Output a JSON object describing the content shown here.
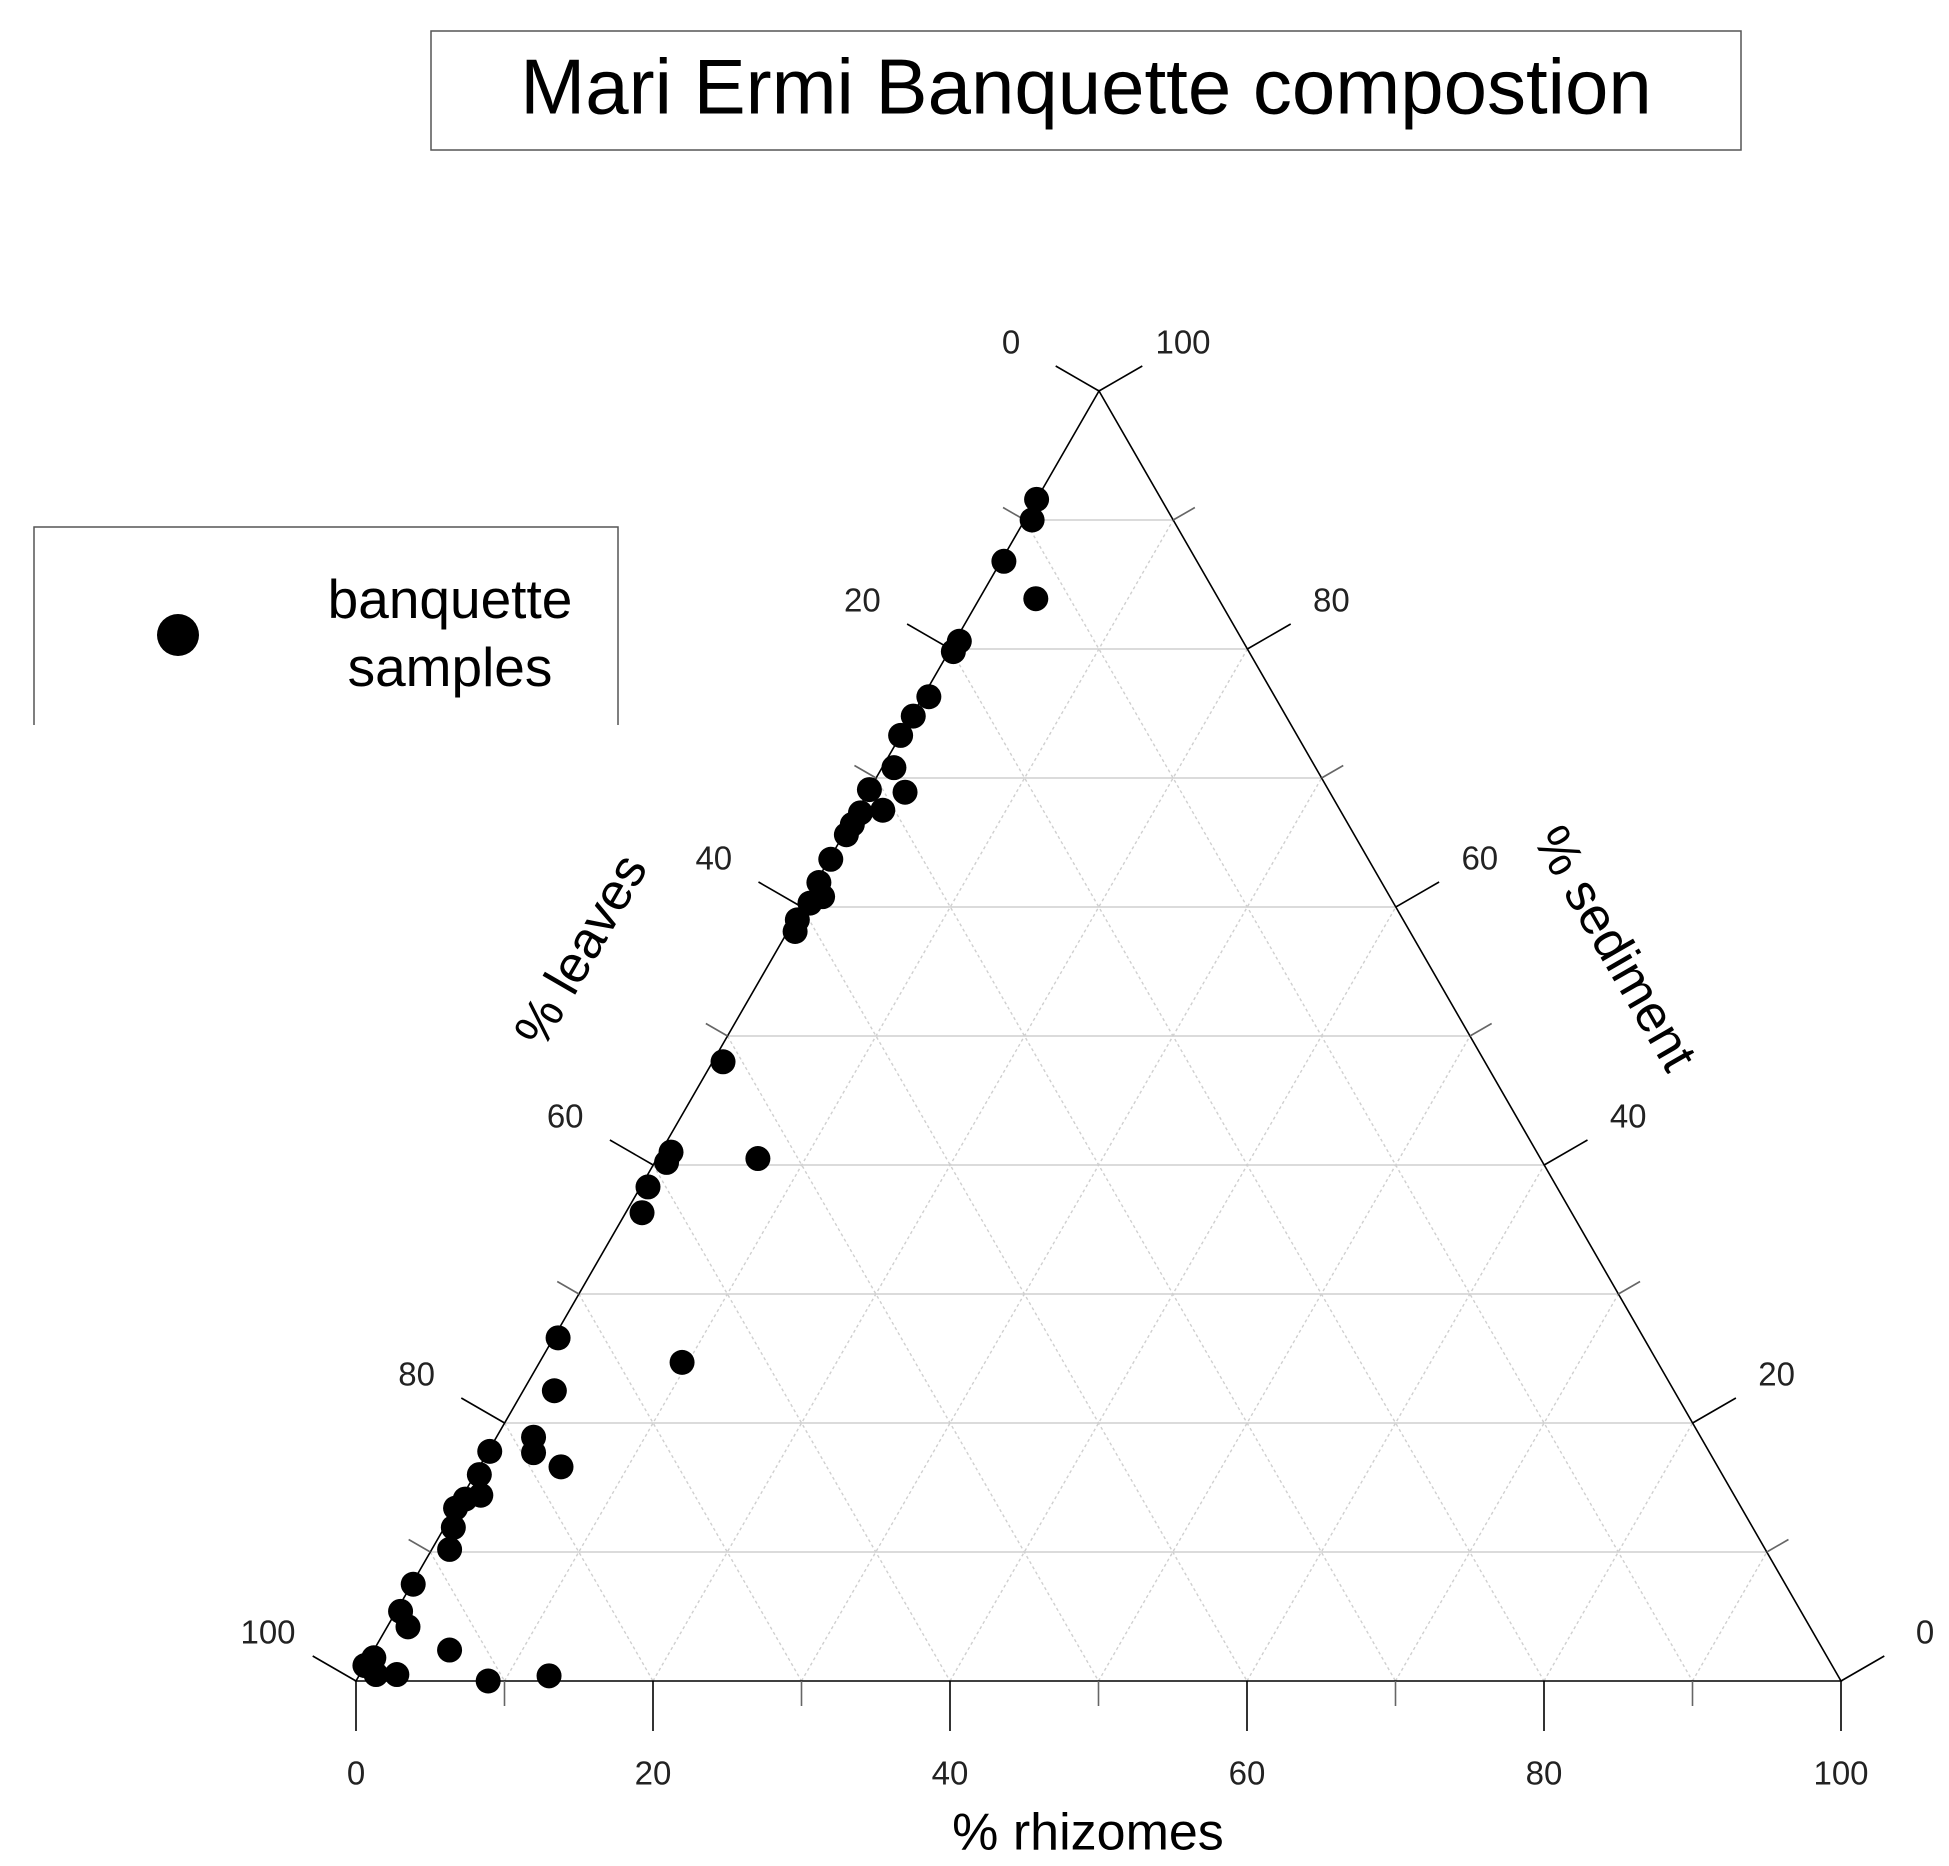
{
  "chart_data": {
    "type": "ternary",
    "title": "Mari Ermi Banquette compostion",
    "grid": true,
    "legend": "upper left",
    "axes": {
      "rhizomes": {
        "label": "% rhizomes",
        "lim": [
          0,
          100
        ],
        "ticks": [
          0,
          20,
          40,
          60,
          80,
          100
        ],
        "minor_ticks": [
          10,
          30,
          50,
          70,
          90
        ]
      },
      "leaves": {
        "label": "% leaves",
        "lim": [
          0,
          100
        ],
        "ticks": [
          0,
          20,
          40,
          60,
          80,
          100
        ],
        "minor_ticks": [
          10,
          30,
          50,
          70,
          90
        ]
      },
      "sediment": {
        "label": "% sediment",
        "lim": [
          0,
          100
        ],
        "ticks": [
          0,
          20,
          40,
          60,
          80,
          100
        ],
        "minor_ticks": [
          10,
          30,
          50,
          70,
          90
        ]
      }
    },
    "series": [
      {
        "name": "banquette samples",
        "color": "#000000",
        "rhizomes": [
          0,
          0.5,
          0.2,
          3.8,
          0.3,
          0.3,
          0.4,
          0.1,
          0,
          0.8,
          2.5,
          0,
          1.7,
          0.3,
          0.2,
          0.2,
          0.1,
          0.2,
          1.0,
          0.4,
          0.2,
          0.5,
          0.7,
          0.7,
          0.8,
          6.8,
          0.5,
          1.1,
          0.3,
          9.6,
          2.1,
          2.5,
          3.1,
          0.1,
          5.5,
          0.3,
          0.3,
          1.2,
          0,
          0.6,
          1.2,
          0.1,
          0.3,
          1.4,
          5.1,
          0.3,
          0,
          1.1,
          2.5,
          8.9,
          12.8
        ],
        "leaves": [
          8.4,
          9.5,
          13.0,
          12.3,
          19.1,
          19.9,
          23.3,
          25.1,
          26.7,
          28.4,
          28.6,
          30.9,
          30.8,
          32.4,
          33.4,
          34.2,
          36.2,
          37.9,
          38.2,
          39.3,
          40.8,
          41.4,
          51.3,
          58.3,
          59.0,
          52.7,
          61.2,
          62.6,
          73.1,
          65.7,
          75.4,
          78.6,
          79.2,
          82.1,
          77.9,
          83.7,
          85.6,
          84.4,
          86.6,
          87.5,
          88.6,
          92.4,
          94.3,
          94.4,
          92.5,
          97.9,
          98.8,
          98.4,
          97.0,
          91.1,
          86.8
        ],
        "sediment": [
          91.6,
          90.0,
          86.8,
          83.9,
          80.6,
          79.8,
          76.3,
          74.8,
          73.3,
          70.8,
          68.9,
          69.1,
          67.5,
          67.3,
          66.4,
          65.6,
          63.7,
          61.9,
          60.8,
          60.3,
          59.0,
          58.1,
          48.0,
          41.0,
          40.2,
          40.5,
          38.3,
          36.3,
          26.6,
          24.7,
          22.5,
          18.9,
          17.7,
          17.8,
          16.6,
          16.0,
          14.1,
          14.4,
          13.4,
          11.9,
          10.2,
          7.5,
          5.4,
          4.2,
          2.4,
          1.8,
          1.2,
          0.5,
          0.5,
          0,
          0.4
        ]
      }
    ]
  }
}
